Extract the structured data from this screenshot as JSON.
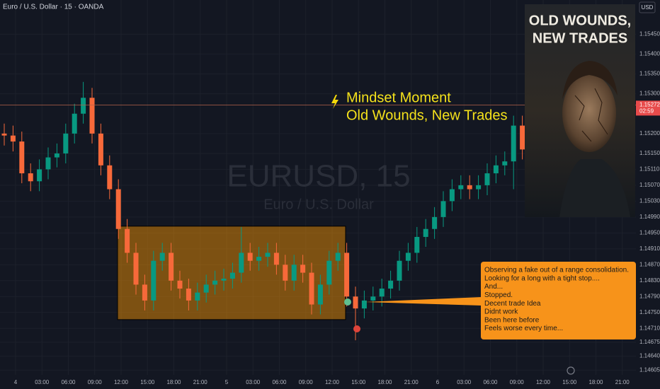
{
  "chart_data": {
    "type": "candlestick",
    "symbol_title": "Euro / U.S. Dollar · 15 · OANDA",
    "watermark": "EURUSD, 15",
    "watermark_subtitle": "Euro / U.S. Dollar",
    "currency": "USD",
    "annotation_title": "Mindset Moment",
    "annotation_subtitle": "Old Wounds, New Trades",
    "poster_title": [
      "OLD WOUNDS,",
      "NEW TRADES"
    ],
    "callout": [
      "Observing a fake out of a range consolidation.",
      "Looking for a long with a tight stop....",
      "And...",
      "Stopped.",
      "Decent trade Idea",
      "Didnt work",
      "Been here before",
      "Feels worse every time..."
    ],
    "current_price": 1.15272,
    "countdown": "02:59",
    "up_color": "#089981",
    "down_color": "#f7693a",
    "ylim": [
      1.14593,
      1.15536
    ],
    "yticks": [
      {
        "value": 1.1545,
        "label": "1.15450"
      },
      {
        "value": 1.154,
        "label": "1.15400"
      },
      {
        "value": 1.1535,
        "label": "1.15350"
      },
      {
        "value": 1.153,
        "label": "1.15300"
      },
      {
        "value": 1.152,
        "label": "1.15200"
      },
      {
        "value": 1.1515,
        "label": "1.15150"
      },
      {
        "value": 1.1511,
        "label": "1.15110"
      },
      {
        "value": 1.1507,
        "label": "1.15070"
      },
      {
        "value": 1.1503,
        "label": "1.15030"
      },
      {
        "value": 1.1499,
        "label": "1.14990"
      },
      {
        "value": 1.1495,
        "label": "1.14950"
      },
      {
        "value": 1.1491,
        "label": "1.14910"
      },
      {
        "value": 1.1487,
        "label": "1.14870"
      },
      {
        "value": 1.1483,
        "label": "1.14830"
      },
      {
        "value": 1.1479,
        "label": "1.14790"
      },
      {
        "value": 1.1475,
        "label": "1.14750"
      },
      {
        "value": 1.1471,
        "label": "1.14710"
      },
      {
        "value": 1.14675,
        "label": "1.14675"
      },
      {
        "value": 1.1464,
        "label": "1.14640"
      },
      {
        "value": 1.14605,
        "label": "1.14605"
      }
    ],
    "x_labels": [
      "4",
      "03:00",
      "06:00",
      "09:00",
      "12:00",
      "15:00",
      "18:00",
      "21:00",
      "5",
      "03:00",
      "06:00",
      "09:00",
      "12:00",
      "15:00",
      "18:00",
      "21:00",
      "6",
      "03:00",
      "06:00",
      "09:00",
      "12:00",
      "15:00",
      "18:00",
      "21:00"
    ],
    "range_box": [
      1.14967,
      1.14732
    ],
    "candles": [
      [
        1.152,
        1.15225,
        1.1517,
        1.15195
      ],
      [
        1.15195,
        1.1522,
        1.15155,
        1.1518
      ],
      [
        1.1518,
        1.15205,
        1.15075,
        1.151
      ],
      [
        1.151,
        1.15125,
        1.15055,
        1.1508
      ],
      [
        1.1508,
        1.15135,
        1.15055,
        1.1511
      ],
      [
        1.1511,
        1.15165,
        1.15085,
        1.1514
      ],
      [
        1.1514,
        1.15175,
        1.15115,
        1.1515
      ],
      [
        1.1515,
        1.15225,
        1.15125,
        1.152
      ],
      [
        1.152,
        1.15275,
        1.15175,
        1.1525
      ],
      [
        1.1525,
        1.1533,
        1.15225,
        1.1529
      ],
      [
        1.1529,
        1.15315,
        1.15175,
        1.152
      ],
      [
        1.152,
        1.15225,
        1.15095,
        1.1512
      ],
      [
        1.1512,
        1.15145,
        1.15035,
        1.1506
      ],
      [
        1.1506,
        1.15085,
        1.14935,
        1.1496
      ],
      [
        1.1496,
        1.14985,
        1.14875,
        1.149
      ],
      [
        1.149,
        1.14925,
        1.14795,
        1.1482
      ],
      [
        1.1482,
        1.14845,
        1.14755,
        1.1478
      ],
      [
        1.1478,
        1.14905,
        1.14755,
        1.1488
      ],
      [
        1.1488,
        1.14925,
        1.14855,
        1.149
      ],
      [
        1.149,
        1.14925,
        1.14805,
        1.1483
      ],
      [
        1.1483,
        1.14855,
        1.14785,
        1.1481
      ],
      [
        1.1481,
        1.14835,
        1.14755,
        1.1478
      ],
      [
        1.1478,
        1.14825,
        1.14755,
        1.148
      ],
      [
        1.148,
        1.14845,
        1.14775,
        1.1482
      ],
      [
        1.1482,
        1.14855,
        1.14795,
        1.1483
      ],
      [
        1.1483,
        1.1486,
        1.14805,
        1.14835
      ],
      [
        1.14835,
        1.14875,
        1.1481,
        1.1485
      ],
      [
        1.1485,
        1.14965,
        1.14825,
        1.149
      ],
      [
        1.149,
        1.14925,
        1.14855,
        1.1488
      ],
      [
        1.1488,
        1.14915,
        1.14855,
        1.1489
      ],
      [
        1.1489,
        1.14925,
        1.14865,
        1.149
      ],
      [
        1.149,
        1.14925,
        1.14845,
        1.1487
      ],
      [
        1.1487,
        1.14895,
        1.14805,
        1.1483
      ],
      [
        1.1483,
        1.14895,
        1.14805,
        1.1487
      ],
      [
        1.1487,
        1.14895,
        1.14825,
        1.1485
      ],
      [
        1.1485,
        1.14875,
        1.14745,
        1.1477
      ],
      [
        1.1477,
        1.14845,
        1.14745,
        1.1482
      ],
      [
        1.1482,
        1.14905,
        1.14795,
        1.1488
      ],
      [
        1.1488,
        1.14925,
        1.14855,
        1.149
      ],
      [
        1.149,
        1.14925,
        1.14765,
        1.1479
      ],
      [
        1.1479,
        1.14815,
        1.1468,
        1.1476
      ],
      [
        1.1476,
        1.14805,
        1.14735,
        1.1478
      ],
      [
        1.1478,
        1.14815,
        1.14755,
        1.1479
      ],
      [
        1.1479,
        1.14835,
        1.14765,
        1.1481
      ],
      [
        1.1481,
        1.14855,
        1.14785,
        1.1483
      ],
      [
        1.1483,
        1.14905,
        1.14805,
        1.1488
      ],
      [
        1.1488,
        1.14925,
        1.14855,
        1.149
      ],
      [
        1.149,
        1.14965,
        1.14875,
        1.1494
      ],
      [
        1.1494,
        1.14985,
        1.14915,
        1.1496
      ],
      [
        1.1496,
        1.15015,
        1.14935,
        1.1499
      ],
      [
        1.1499,
        1.15055,
        1.14965,
        1.1503
      ],
      [
        1.1503,
        1.15085,
        1.15005,
        1.1506
      ],
      [
        1.1506,
        1.15095,
        1.15035,
        1.1507
      ],
      [
        1.1507,
        1.15095,
        1.15035,
        1.1506
      ],
      [
        1.1506,
        1.15095,
        1.15035,
        1.1507
      ],
      [
        1.1507,
        1.15125,
        1.15045,
        1.151
      ],
      [
        1.151,
        1.15145,
        1.15075,
        1.1512
      ],
      [
        1.1512,
        1.15155,
        1.15095,
        1.1513
      ],
      [
        1.1513,
        1.15245,
        1.1506,
        1.1522
      ],
      [
        1.1522,
        1.15245,
        1.15135,
        1.1516
      ]
    ]
  }
}
